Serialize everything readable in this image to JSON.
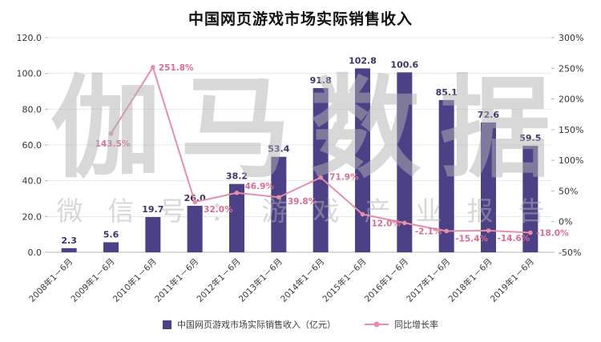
{
  "title": "中国网页游戏市场实际销售收入",
  "watermark": {
    "main": "伽马数据",
    "sub": "微信号：游戏产业报告"
  },
  "legend": {
    "bar_label": "中国网页游戏市场实际销售收入（亿元）",
    "line_label": "同比增长率"
  },
  "colors": {
    "bar": "#4c4186",
    "bar_label": "#3c3468",
    "line": "#e78fa7",
    "line_label": "#db6c8f",
    "axis_text": "#333333",
    "grid": "#e7e7e7",
    "axis_line": "#b5b5b5",
    "x_label": "#3a3a3a"
  },
  "chart_data": {
    "type": "bar+line",
    "title": "中国网页游戏市场实际销售收入",
    "categories": [
      "2008年1－6月",
      "2009年1－6月",
      "2010年1－6月",
      "2011年1－6月",
      "2012年1－6月",
      "2013年1－6月",
      "2014年1－6月",
      "2015年1－6月",
      "2016年1－6月",
      "2017年1－6月",
      "2018年1－6月",
      "2019年1－6月"
    ],
    "series": [
      {
        "name": "中国网页游戏市场实际销售收入（亿元）",
        "type": "bar",
        "axis": "left",
        "values": [
          2.3,
          5.6,
          19.7,
          26.0,
          38.2,
          53.4,
          91.8,
          102.8,
          100.6,
          85.1,
          72.6,
          59.5
        ],
        "labels": [
          "2.3",
          "5.6",
          "19.7",
          "26.0",
          "38.2",
          "53.4",
          "91.8",
          "102.8",
          "100.6",
          "85.1",
          "72.6",
          "59.5"
        ]
      },
      {
        "name": "同比增长率",
        "type": "line",
        "axis": "right",
        "values": [
          null,
          143.5,
          251.8,
          32.0,
          46.9,
          39.8,
          71.9,
          12.0,
          -2.1,
          -15.4,
          -14.6,
          -18.0
        ],
        "labels": [
          null,
          "143.5%",
          "251.8%",
          "32.0%",
          "46.9%",
          "39.8%",
          "71.9%",
          "12.0%",
          "-2.1%",
          "-15.4%",
          "-14.6%",
          "-18.0%"
        ]
      }
    ],
    "left_axis": {
      "min": 0,
      "max": 120,
      "step": 20,
      "ticks": [
        "120.0",
        "100.0",
        "80.0",
        "60.0",
        "40.0",
        "20.0",
        "0.0"
      ]
    },
    "right_axis": {
      "min": -50,
      "max": 300,
      "step": 50,
      "ticks": [
        "300%",
        "250%",
        "200%",
        "150%",
        "100%",
        "50%",
        "0%",
        "-50%"
      ]
    },
    "grid": true,
    "legend_position": "bottom"
  }
}
